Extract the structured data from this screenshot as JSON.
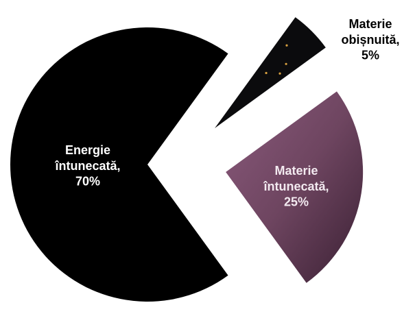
{
  "chart_data": {
    "type": "pie",
    "categories": [
      "Materie obișnuită,",
      "Materie întunecată,",
      "Energie întunecată,"
    ],
    "values": [
      5,
      25,
      70
    ],
    "value_labels": [
      "5%",
      "25%",
      "70%"
    ],
    "colors": [
      "#0b0b0d",
      "#6e4560",
      "#000000"
    ]
  }
}
